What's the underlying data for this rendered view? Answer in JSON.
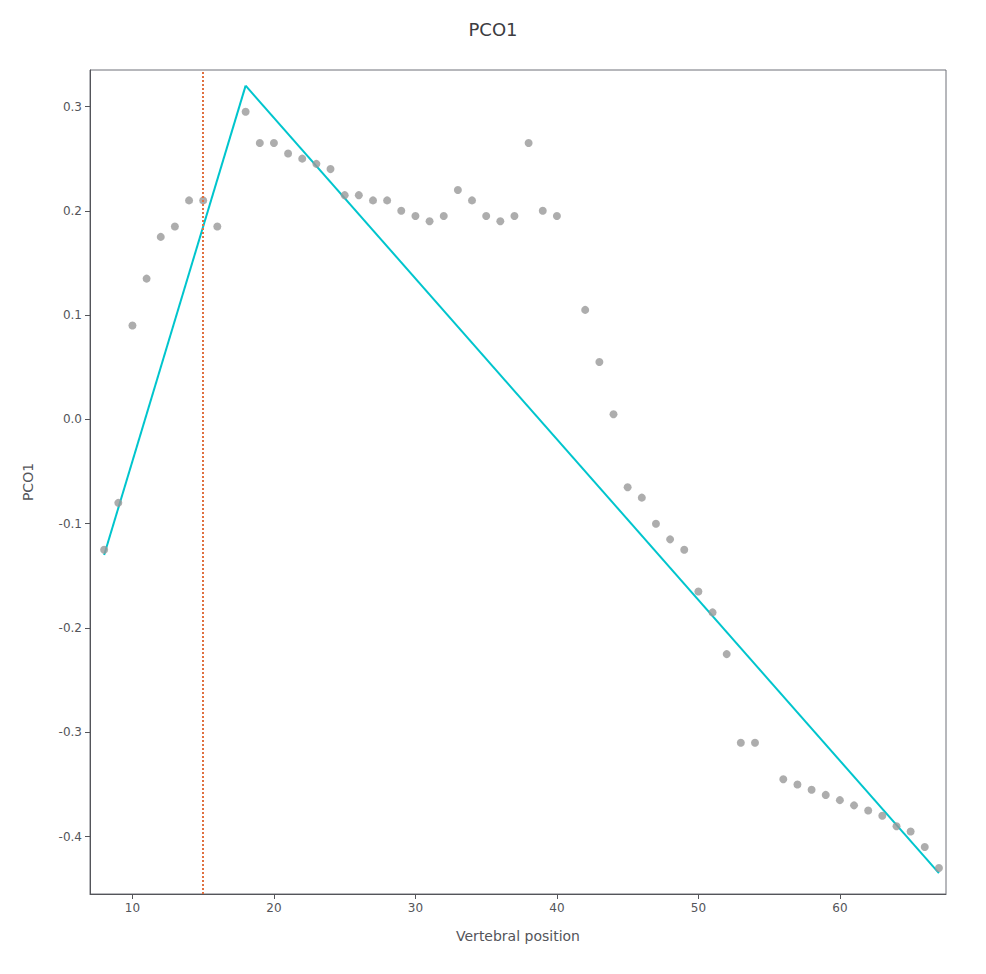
{
  "chart_data": {
    "type": "scatter",
    "title": "PCO1",
    "xlabel": "Vertebral position",
    "ylabel": "PCO1",
    "xlim": [
      7.0,
      67.5
    ],
    "ylim": [
      -0.455,
      0.335
    ],
    "xticks": [
      10,
      20,
      30,
      40,
      50,
      60
    ],
    "yticks": [
      -0.4,
      -0.3,
      -0.2,
      -0.1,
      {
        "value": 0.0,
        "label": "0.0"
      },
      0.1,
      0.2,
      0.3
    ],
    "grid": false,
    "series": [
      {
        "type": "scatter",
        "color": "#999999",
        "x": [
          8,
          9,
          10,
          11,
          12,
          13,
          14,
          15,
          16,
          18,
          19,
          20,
          21,
          22,
          23,
          24,
          25,
          26,
          27,
          28,
          29,
          30,
          31,
          32,
          33,
          34,
          35,
          36,
          37,
          38,
          39,
          40,
          42,
          43,
          44,
          45,
          46,
          47,
          48,
          49,
          50,
          51,
          52,
          53,
          54,
          56,
          57,
          58,
          59,
          60,
          61,
          62,
          63,
          64,
          65,
          66,
          67
        ],
        "values": [
          -0.125,
          -0.08,
          0.09,
          0.135,
          0.175,
          0.185,
          0.21,
          0.21,
          0.185,
          0.295,
          0.265,
          0.265,
          0.255,
          0.25,
          0.245,
          0.24,
          0.215,
          0.215,
          0.21,
          0.21,
          0.2,
          0.195,
          0.19,
          0.195,
          0.22,
          0.21,
          0.195,
          0.19,
          0.195,
          0.265,
          0.2,
          0.195,
          0.105,
          0.055,
          0.005,
          -0.065,
          -0.075,
          -0.1,
          -0.115,
          -0.125,
          -0.165,
          -0.185,
          -0.225,
          -0.31,
          -0.31,
          -0.345,
          -0.35,
          -0.355,
          -0.36,
          -0.365,
          -0.37,
          -0.375,
          -0.38,
          -0.39,
          -0.395,
          -0.41,
          -0.43
        ]
      },
      {
        "type": "line",
        "color": "#00C5CD",
        "x": [
          8,
          18
        ],
        "values": [
          -0.13,
          0.32
        ]
      },
      {
        "type": "line",
        "color": "#00C5CD",
        "x": [
          18,
          67
        ],
        "values": [
          0.32,
          -0.435
        ]
      }
    ],
    "vlines": [
      {
        "x": 15.0,
        "color": "#E07040",
        "line_style": "dotted"
      }
    ]
  }
}
